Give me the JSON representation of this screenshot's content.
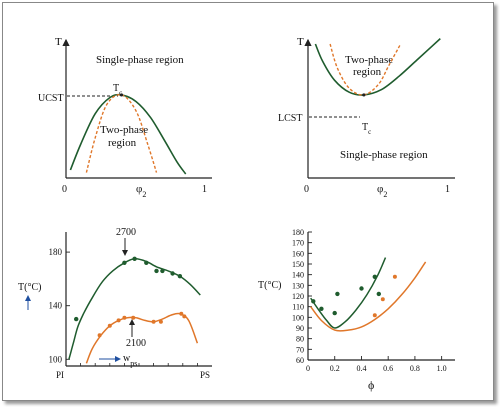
{
  "colors": {
    "green": "#1f5c2e",
    "orange": "#e0772a",
    "dark": "#222222"
  },
  "chart_data": [
    {
      "type": "line",
      "ylabel": "T",
      "xlabel": "φ2",
      "tick_labels_x": [
        "0",
        "1"
      ],
      "annotations": {
        "critical_label": "UCST",
        "critical_point": "Tc",
        "top_region": "Single-phase region",
        "inner_region_1": "Two-phase",
        "inner_region_2": "region"
      },
      "xlim": [
        0,
        1
      ],
      "ylim": [
        0,
        1
      ],
      "critical": [
        0.38,
        0.62
      ],
      "series": [
        {
          "role": "binodal",
          "style": "solid",
          "x": [
            0.03,
            0.1,
            0.2,
            0.3,
            0.38,
            0.48,
            0.58,
            0.68,
            0.76,
            0.82
          ],
          "y": [
            0.06,
            0.25,
            0.48,
            0.6,
            0.62,
            0.57,
            0.45,
            0.27,
            0.12,
            0.03
          ]
        },
        {
          "role": "spinodal",
          "style": "dashed",
          "x": [
            0.14,
            0.2,
            0.28,
            0.38,
            0.48,
            0.56,
            0.62
          ],
          "y": [
            0.04,
            0.3,
            0.55,
            0.62,
            0.5,
            0.25,
            0.04
          ]
        }
      ]
    },
    {
      "type": "line",
      "ylabel": "T",
      "xlabel": "φ2",
      "tick_labels_x": [
        "0",
        "1"
      ],
      "annotations": {
        "critical_label": "LCST",
        "critical_point": "Tc",
        "bottom_region": "Single-phase region",
        "inner_region_1": "Two-phase",
        "inner_region_2": "region"
      },
      "xlim": [
        0,
        1
      ],
      "ylim": [
        0,
        1
      ],
      "critical": [
        0.38,
        0.62
      ],
      "series": [
        {
          "role": "binodal",
          "style": "solid",
          "x": [
            0.05,
            0.1,
            0.18,
            0.28,
            0.38,
            0.5,
            0.62,
            0.74,
            0.84,
            0.9
          ],
          "y": [
            1.0,
            0.87,
            0.73,
            0.64,
            0.62,
            0.66,
            0.76,
            0.88,
            0.98,
            1.04
          ]
        },
        {
          "role": "spinodal",
          "style": "dashed",
          "x": [
            0.15,
            0.2,
            0.28,
            0.38,
            0.48,
            0.55,
            0.63
          ],
          "y": [
            1.0,
            0.82,
            0.67,
            0.62,
            0.7,
            0.84,
            1.0
          ]
        }
      ]
    },
    {
      "type": "line",
      "ylabel": "T(°C)",
      "xlabel": "wps",
      "tick_labels_x": [
        "PI",
        "PS"
      ],
      "yticks": [
        100,
        140,
        180
      ],
      "ylim": [
        95,
        195
      ],
      "xlim": [
        0,
        1
      ],
      "annotations": {
        "upper_label": "2700",
        "lower_label": "2100"
      },
      "series": [
        {
          "name": "2700",
          "style": "solid",
          "x": [
            0.02,
            0.05,
            0.08,
            0.12,
            0.18,
            0.25,
            0.32,
            0.4,
            0.47,
            0.55,
            0.62,
            0.7,
            0.78,
            0.85,
            0.92
          ],
          "y": [
            100,
            112,
            124,
            134,
            146,
            158,
            166,
            172,
            175,
            173,
            169,
            166,
            162,
            156,
            148
          ]
        },
        {
          "name": "2100",
          "style": "solid",
          "x": [
            0.14,
            0.18,
            0.24,
            0.3,
            0.36,
            0.42,
            0.48,
            0.54,
            0.6,
            0.66,
            0.72,
            0.78,
            0.84,
            0.9
          ],
          "y": [
            97,
            108,
            118,
            125,
            129,
            131,
            131,
            129,
            128,
            130,
            133,
            134,
            129,
            112
          ]
        }
      ],
      "markers": [
        {
          "color": "green",
          "x": [
            0.07,
            0.4,
            0.47,
            0.55,
            0.62,
            0.66,
            0.73,
            0.78
          ],
          "y": [
            130,
            172,
            175,
            172,
            166,
            166,
            164,
            162
          ]
        },
        {
          "color": "orange",
          "x": [
            0.23,
            0.3,
            0.36,
            0.4,
            0.46,
            0.6,
            0.65,
            0.79,
            0.81
          ],
          "y": [
            118,
            125,
            129,
            131,
            131,
            128,
            128,
            134,
            132
          ]
        }
      ]
    },
    {
      "type": "line",
      "ylabel": "T(°C)",
      "xlabel": "ϕ",
      "xticks": [
        0,
        0.2,
        0.4,
        0.6,
        0.8,
        1.0
      ],
      "yticks": [
        60,
        70,
        80,
        90,
        100,
        110,
        120,
        130,
        140,
        150,
        160,
        170,
        180
      ],
      "xlim": [
        0,
        1.1
      ],
      "ylim": [
        60,
        180
      ],
      "series": [
        {
          "style": "solid",
          "color": "green",
          "x": [
            0.02,
            0.08,
            0.14,
            0.2,
            0.28,
            0.36,
            0.44,
            0.52,
            0.58
          ],
          "y": [
            118,
            107,
            97,
            90,
            96,
            107,
            121,
            139,
            156
          ]
        },
        {
          "style": "solid",
          "color": "orange",
          "x": [
            0.02,
            0.1,
            0.2,
            0.3,
            0.4,
            0.5,
            0.6,
            0.7,
            0.8,
            0.88
          ],
          "y": [
            110,
            97,
            88,
            88,
            91,
            98,
            108,
            121,
            137,
            152
          ]
        }
      ],
      "markers": [
        {
          "color": "green",
          "x": [
            0.04,
            0.1,
            0.2,
            0.22,
            0.4,
            0.5,
            0.53
          ],
          "y": [
            115,
            108,
            104,
            122,
            127,
            138,
            122
          ]
        },
        {
          "color": "orange",
          "x": [
            0.5,
            0.56,
            0.65
          ],
          "y": [
            102,
            117,
            138
          ]
        }
      ]
    }
  ]
}
